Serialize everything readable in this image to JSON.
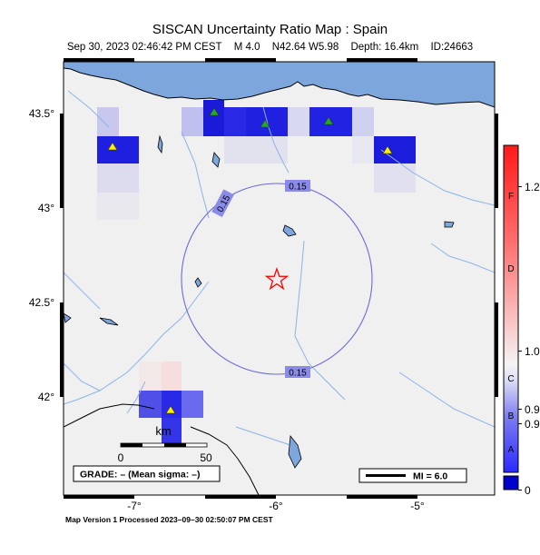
{
  "header": {
    "title": "SISCAN Uncertainty Ratio Map : Spain",
    "datetime": "Sep 30, 2023 02:46:42 PM CEST",
    "magnitude": "M 4.0",
    "location": "N42.64 W5.98",
    "depth": "Depth: 16.4km",
    "event_id": "ID:24663"
  },
  "map": {
    "lat_ticks": [
      "43.5°",
      "43°",
      "42.5°",
      "42°"
    ],
    "lon_ticks": [
      "-7°",
      "-6°",
      "-5°"
    ],
    "contour_labels": [
      "0.15",
      "0.15",
      "0.15"
    ],
    "scale_bar": {
      "unit": "km",
      "start": "0",
      "end": "50"
    },
    "grade_box": "GRADE: – (Mean sigma: –)",
    "mi_box": "MI = 6.0",
    "colors": {
      "sea": "#7da6dc",
      "land": "#f0f0f0",
      "contour": "#6a6ad8",
      "epicenter": "#ff0000"
    }
  },
  "colorbar": {
    "letters": [
      "F",
      "D",
      "C",
      "B",
      "A"
    ],
    "values": [
      "1.2",
      "1.0",
      "0.9",
      "0.9",
      "0"
    ]
  },
  "footer": "Map Version 1 Processed 2023–09–30 02:50:07 PM CEST"
}
